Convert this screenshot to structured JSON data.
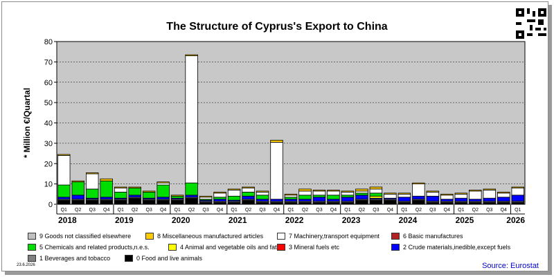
{
  "title": "The Structure of Cyprus's Export to China",
  "date": "23.6.2026",
  "source": "Source: Eurostat",
  "colors": {
    "g9": "#c0c0c0",
    "g8": "#ffcc00",
    "g7": "#ffffff",
    "g6": "#b22222",
    "g5": "#00dd00",
    "g4": "#ffff00",
    "g3": "#ff0000",
    "g2": "#0000ff",
    "g1": "#808080",
    "g0": "#000000",
    "plot_bg": "#c8c8c8"
  },
  "legend": [
    {
      "key": "g9",
      "label": "9 Goods not classified elsewhere"
    },
    {
      "key": "g8",
      "label": "8 Miscellaneous manufactured articles"
    },
    {
      "key": "g7",
      "label": "7 Machinery,transport equipment"
    },
    {
      "key": "g6",
      "label": "6 Basic manufactures"
    },
    {
      "key": "g5",
      "label": "5 Chemicals and related products,n.e.s."
    },
    {
      "key": "g4",
      "label": "4 Animal and vegetable oils and fats"
    },
    {
      "key": "g3",
      "label": "3 Mineral fuels etc"
    },
    {
      "key": "g2",
      "label": "2 Crude materials,inedible,except fuels"
    },
    {
      "key": "g1",
      "label": "1 Beverages and tobacco"
    },
    {
      "key": "g0",
      "label": "0 Food and live animals"
    }
  ],
  "chart_data": {
    "type": "bar",
    "stacked": true,
    "ylabel": "* Million €/Quartal",
    "ylim": [
      0,
      80
    ],
    "yticks": [
      0,
      10,
      20,
      30,
      40,
      50,
      60,
      70,
      80
    ],
    "grid": true,
    "quarter_labels": [
      "Q1",
      "Q2",
      "Q3",
      "Q4",
      "Q1",
      "Q2",
      "Q3",
      "Q4",
      "Q1",
      "Q2",
      "Q3",
      "Q4",
      "Q1",
      "Q2",
      "Q3",
      "Q4",
      "Q1",
      "Q2",
      "Q3",
      "Q4",
      "Q1",
      "Q2",
      "Q3",
      "Q4",
      "Q1",
      "Q2",
      "Q3",
      "Q4",
      "Q1",
      "Q2",
      "Q3",
      "Q4",
      "Q1"
    ],
    "year_labels": [
      "2018",
      "2019",
      "2020",
      "2021",
      "2022",
      "2023",
      "2024",
      "2025",
      "2026"
    ],
    "series": [
      {
        "key": "g0",
        "values": [
          2,
          2,
          2,
          2,
          2,
          3,
          2,
          2,
          2,
          3,
          1,
          1,
          1,
          2,
          1,
          1,
          1,
          1,
          1,
          1,
          1,
          2,
          2,
          2,
          1,
          2,
          1,
          1,
          1,
          1,
          1,
          1,
          1
        ]
      },
      {
        "key": "g1",
        "values": [
          0.5,
          0.5,
          0.5,
          0.5,
          0.5,
          0.5,
          0.5,
          0.5,
          0.5,
          0.5,
          0.5,
          0.5,
          0.5,
          0.5,
          0.5,
          0.5,
          0.5,
          0.5,
          0.5,
          0.5,
          0.5,
          0.5,
          0.5,
          0.5,
          0.5,
          0.5,
          0.5,
          0.5,
          0.5,
          0.5,
          0.5,
          0.5,
          0.5
        ]
      },
      {
        "key": "g2",
        "values": [
          1,
          2,
          0.5,
          1,
          0.5,
          1,
          0.5,
          1,
          0.5,
          1,
          0.5,
          1,
          0.5,
          1.5,
          1,
          1,
          1,
          1,
          2,
          1,
          2,
          2,
          0.5,
          0.5,
          2,
          1.5,
          2.5,
          1,
          1.5,
          1,
          1.5,
          2,
          3
        ]
      },
      {
        "key": "g3",
        "values": [
          0,
          0,
          0,
          0,
          0,
          0,
          0,
          0,
          0,
          0,
          0,
          0,
          0,
          0,
          0,
          0,
          0,
          0,
          0,
          0,
          0,
          0,
          0,
          0,
          0,
          0,
          0,
          0,
          0,
          0,
          0,
          0,
          0
        ]
      },
      {
        "key": "g4",
        "values": [
          0,
          0,
          0,
          0,
          0,
          0,
          0,
          0,
          0,
          0,
          0,
          0,
          0,
          0,
          0,
          0,
          0,
          0,
          0,
          0,
          0,
          0,
          1,
          0,
          0,
          0,
          0,
          0,
          0,
          0,
          0,
          0,
          0
        ]
      },
      {
        "key": "g5",
        "values": [
          6,
          6.5,
          4.5,
          8,
          3,
          3.5,
          3,
          6,
          1,
          6,
          0.5,
          1,
          2,
          2,
          2,
          0,
          1,
          2,
          1,
          2,
          1,
          1,
          1.5,
          0,
          0,
          0,
          0,
          0,
          0,
          0,
          0,
          0,
          0
        ]
      },
      {
        "key": "g6",
        "values": [
          0,
          0,
          0,
          0,
          0,
          0,
          0,
          0,
          0,
          0,
          0,
          0,
          0,
          0,
          0,
          0,
          0,
          0,
          0,
          0,
          0,
          0,
          0,
          0,
          0,
          0,
          0,
          0,
          0,
          0,
          0,
          0,
          0
        ]
      },
      {
        "key": "g7",
        "values": [
          14.5,
          0,
          7.5,
          0,
          2,
          0,
          0,
          1,
          0,
          62.5,
          1,
          2,
          3,
          2,
          1.5,
          28,
          1,
          2,
          2,
          2,
          1.5,
          1,
          2,
          2,
          1.5,
          6,
          2,
          2,
          2,
          4,
          4,
          2,
          3.5
        ]
      },
      {
        "key": "g8",
        "values": [
          0.5,
          0.5,
          0.5,
          1,
          0.5,
          0.5,
          0.5,
          0.5,
          0.5,
          0.5,
          0.5,
          0.5,
          0.5,
          0.5,
          0.5,
          1,
          0.5,
          1,
          0.5,
          0.5,
          0.5,
          1,
          1,
          0.5,
          0.5,
          0.5,
          0.5,
          0.5,
          0.5,
          0.5,
          0.5,
          0.5,
          0.5
        ]
      },
      {
        "key": "g9",
        "values": [
          0,
          0,
          0,
          0,
          0,
          0,
          0,
          0,
          0,
          0,
          0,
          0,
          0,
          0,
          0,
          0,
          0,
          0,
          0,
          0,
          0,
          0,
          0,
          0,
          0,
          0,
          0,
          0,
          0,
          0,
          0,
          0,
          0
        ]
      }
    ]
  }
}
